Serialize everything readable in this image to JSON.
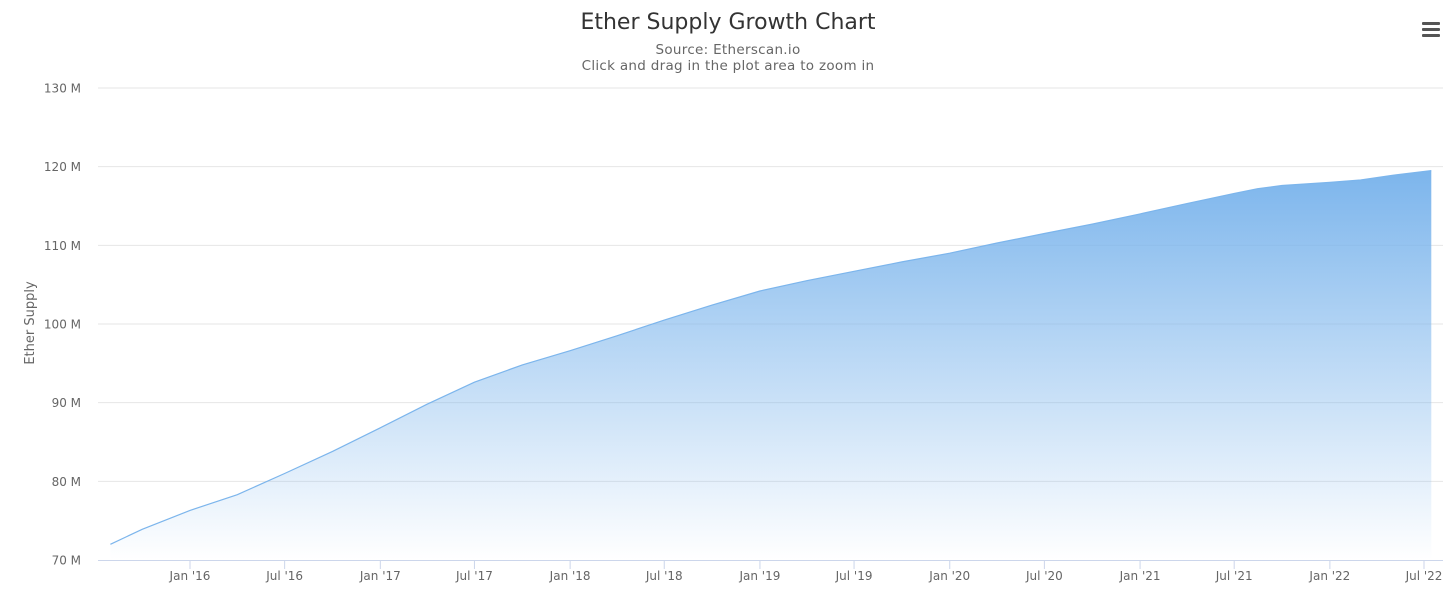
{
  "colors": {
    "series": "#7cb5ec",
    "grid": "#e6e6e6",
    "axis_text": "#666666",
    "menu_icon": "#555555"
  },
  "menu": {
    "icon": "hamburger-menu-icon"
  },
  "chart_data": {
    "type": "area",
    "title": "Ether Supply Growth Chart",
    "subtitle": [
      "Source: Etherscan.io",
      "Click and drag in the plot area to zoom in"
    ],
    "xlabel": "",
    "ylabel": "Ether Supply",
    "ylim": [
      70000000,
      130000000
    ],
    "yticks": [
      {
        "value": 70000000,
        "label": "70 M"
      },
      {
        "value": 80000000,
        "label": "80 M"
      },
      {
        "value": 90000000,
        "label": "90 M"
      },
      {
        "value": 100000000,
        "label": "100 M"
      },
      {
        "value": 110000000,
        "label": "110 M"
      },
      {
        "value": 120000000,
        "label": "120 M"
      },
      {
        "value": 130000000,
        "label": "130 M"
      }
    ],
    "xticks": [
      {
        "date": "2016-01-01",
        "label": "Jan '16"
      },
      {
        "date": "2016-07-01",
        "label": "Jul '16"
      },
      {
        "date": "2017-01-01",
        "label": "Jan '17"
      },
      {
        "date": "2017-07-01",
        "label": "Jul '17"
      },
      {
        "date": "2018-01-01",
        "label": "Jan '18"
      },
      {
        "date": "2018-07-01",
        "label": "Jul '18"
      },
      {
        "date": "2019-01-01",
        "label": "Jan '19"
      },
      {
        "date": "2019-07-01",
        "label": "Jul '19"
      },
      {
        "date": "2020-01-01",
        "label": "Jan '20"
      },
      {
        "date": "2020-07-01",
        "label": "Jul '20"
      },
      {
        "date": "2021-01-01",
        "label": "Jan '21"
      },
      {
        "date": "2021-07-01",
        "label": "Jul '21"
      },
      {
        "date": "2022-01-01",
        "label": "Jan '22"
      },
      {
        "date": "2022-07-01",
        "label": "Jul '22"
      }
    ],
    "grid": true,
    "legend": "none",
    "series": [
      {
        "points": [
          [
            "2015-08-01",
            72000000
          ],
          [
            "2015-10-01",
            73900000
          ],
          [
            "2016-01-01",
            76300000
          ],
          [
            "2016-04-01",
            78300000
          ],
          [
            "2016-07-01",
            81000000
          ],
          [
            "2016-10-01",
            83800000
          ],
          [
            "2017-01-01",
            86800000
          ],
          [
            "2017-04-01",
            89800000
          ],
          [
            "2017-07-01",
            92600000
          ],
          [
            "2017-10-01",
            94800000
          ],
          [
            "2018-01-01",
            96600000
          ],
          [
            "2018-04-01",
            98500000
          ],
          [
            "2018-07-01",
            100500000
          ],
          [
            "2018-10-01",
            102400000
          ],
          [
            "2019-01-01",
            104200000
          ],
          [
            "2019-04-01",
            105500000
          ],
          [
            "2019-07-01",
            106700000
          ],
          [
            "2019-10-01",
            107900000
          ],
          [
            "2020-01-01",
            109000000
          ],
          [
            "2020-04-01",
            110300000
          ],
          [
            "2020-07-01",
            111500000
          ],
          [
            "2020-10-01",
            112700000
          ],
          [
            "2021-01-01",
            114000000
          ],
          [
            "2021-04-01",
            115300000
          ],
          [
            "2021-07-01",
            116600000
          ],
          [
            "2021-08-15",
            117200000
          ],
          [
            "2021-10-01",
            117600000
          ],
          [
            "2022-01-01",
            118000000
          ],
          [
            "2022-03-01",
            118300000
          ],
          [
            "2022-05-01",
            118900000
          ],
          [
            "2022-07-15",
            119500000
          ]
        ]
      }
    ]
  }
}
